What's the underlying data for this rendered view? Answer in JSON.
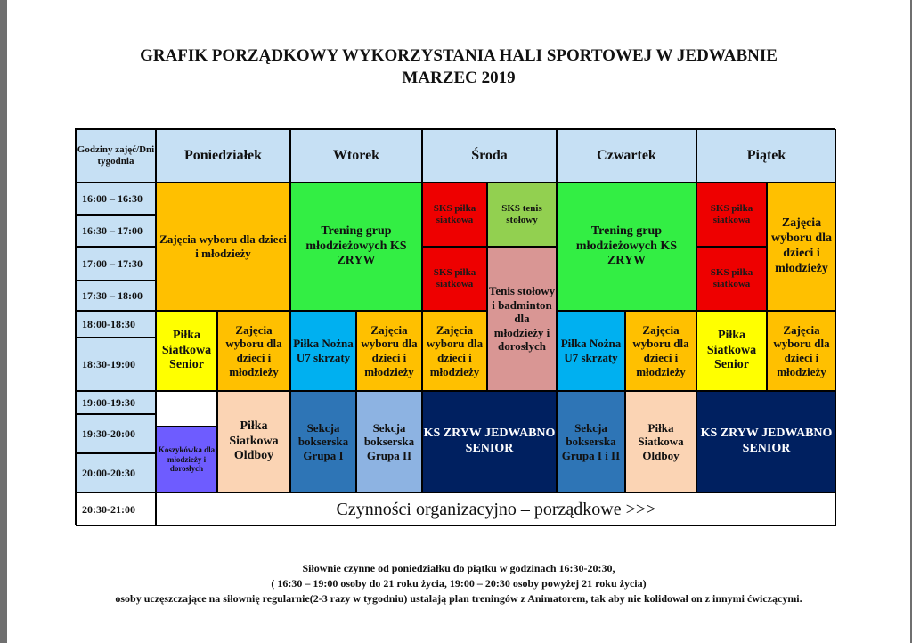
{
  "title": {
    "line1": "GRAFIK PORZĄDKOWY WYKORZYSTANIA  HALI SPORTOWEJ W JEDWABNIE",
    "line2": "MARZEC 2019"
  },
  "table": {
    "corner": [
      "Godziny",
      "zajęć/Dni",
      "tygodnia"
    ],
    "days": [
      "Poniedziałek",
      "Wtorek",
      "Środa",
      "Czwartek",
      "Piątek"
    ],
    "times": [
      "16:00 – 16:30",
      "16:30 – 17:00",
      "17:00 – 17:30",
      "17:30 – 18:00",
      "18:00-18:30",
      "18:30-19:00",
      "19:00-19:30",
      "19:30-20:00",
      "20:00-20:30",
      "20:30-21:00"
    ],
    "cells": {
      "mon_zajecia": [
        "Zajęcia wyboru",
        "dla",
        "dzieci i młodzieży"
      ],
      "tue_trening": [
        "Trening grup",
        "młodzieżowych",
        "KS ZRYW"
      ],
      "wed_sks1": [
        "SKS",
        "piłka",
        "siatkowa"
      ],
      "wed_sks_tenis": [
        "SKS",
        "tenis",
        "stołowy"
      ],
      "wed_sks2": [
        "SKS",
        "piłka",
        "siatkowa"
      ],
      "wed_tenis": [
        "Tenis",
        "stołowy i",
        "badminton",
        "dla",
        "młodzieży i",
        "dorosłych"
      ],
      "thu_trening": [
        "Trening grup",
        "młodzieżowych",
        "KS ZRYW"
      ],
      "fri_sks1": [
        "SKS",
        "piłka",
        "siatkowa"
      ],
      "fri_sks2": [
        "SKS",
        "piłka",
        "siatkowa"
      ],
      "fri_zajecia1": [
        "Zajęcia",
        "wyboru",
        "dla",
        "dzieci i",
        "młodzieży"
      ],
      "mon_siatkowa": [
        "Piłka",
        "Siatkowa",
        "Senior"
      ],
      "mon_zajecia2": [
        "Zajęcia",
        "wyboru",
        "dla",
        "dzieci i",
        "młodzieży"
      ],
      "tue_pilka_nozna": [
        "Piłka",
        "Nożna",
        "",
        "U7",
        "skrzaty"
      ],
      "tue_zajecia": [
        "Zajęcia",
        "wyboru",
        "dla",
        "dzieci i",
        "młodzieży"
      ],
      "wed_zajecia": [
        "Zajęcia",
        "wyboru",
        "dla",
        "dzieci i",
        "młodzieży"
      ],
      "thu_pilka_nozna": [
        "Piłka",
        "Nożna",
        "",
        "U7",
        "skrzaty"
      ],
      "thu_zajecia": [
        "Zajęcia",
        "wyboru",
        "dla",
        "dzieci i",
        "młodzieży"
      ],
      "fri_siatkowa": [
        "Piłka",
        "Siatkowa",
        "Senior"
      ],
      "fri_zajecia2": [
        "Zajęcia",
        "wyboru",
        "dla",
        "dzieci i",
        "młodzieży"
      ],
      "mon_oldboy": [
        "Piłka",
        "Siatkowa",
        "Oldboy"
      ],
      "mon_koszykowka": [
        "Koszykówka",
        "dla",
        "młodzieży i",
        "dorosłych"
      ],
      "tue_boks1": [
        "Sekcja",
        "bokserska",
        "Grupa I"
      ],
      "tue_boks2": [
        "Sekcja",
        "bokserska",
        "Grupa II"
      ],
      "wed_senior": [
        "KS ZRYW",
        "JEDWABNO",
        "SENIOR"
      ],
      "thu_boks": [
        "Sekcja",
        "bokserska",
        "Grupa",
        "I i II"
      ],
      "thu_oldboy": [
        "Piłka",
        "Siatkowa",
        "Oldboy"
      ],
      "fri_senior": [
        "KS ZRYW",
        "JEDWABNO",
        "SENIOR"
      ],
      "organizacyjne": "Czynności organizacyjno – porządkowe >>>"
    }
  },
  "footer": {
    "line1": "Siłownie czynne od poniedziałku do piątku w godzinach 16:30-20:30,",
    "line2": "( 16:30 – 19:00 osoby do 21 roku życia, 19:00 – 20:30 osoby powyżej 21 roku życia)",
    "line3": "osoby uczęszczające na siłownię regularnie(2-3 razy w tygodniu) ustalają plan treningów z Animatorem, tak aby nie kolidował on z innymi ćwiczącymi."
  }
}
